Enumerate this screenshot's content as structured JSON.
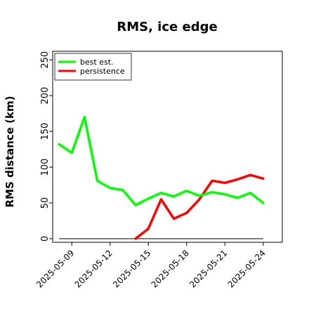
{
  "chart_data": {
    "type": "line",
    "title": "RMS, ice edge",
    "xlabel": "",
    "ylabel": "RMS distance (km)",
    "x_dates": [
      "2025-05-08",
      "2025-05-09",
      "2025-05-10",
      "2025-05-11",
      "2025-05-12",
      "2025-05-13",
      "2025-05-14",
      "2025-05-15",
      "2025-05-16",
      "2025-05-17",
      "2025-05-18",
      "2025-05-19",
      "2025-05-20",
      "2025-05-21",
      "2025-05-22",
      "2025-05-23",
      "2025-05-24"
    ],
    "xticks": [
      "2025-05-09",
      "2025-05-12",
      "2025-05-15",
      "2025-05-18",
      "2025-05-21",
      "2025-05-24"
    ],
    "xlim": [
      "2025-05-07T12:00",
      "2025-05-25T12:00"
    ],
    "ylim": [
      -5,
      262
    ],
    "yticks": [
      0,
      50,
      100,
      150,
      200,
      250
    ],
    "grid": false,
    "legend": "top-left",
    "series": [
      {
        "name": "best est.",
        "color": "#00ff00",
        "x": [
          "2025-05-08",
          "2025-05-09",
          "2025-05-10",
          "2025-05-11",
          "2025-05-12",
          "2025-05-13",
          "2025-05-14",
          "2025-05-15",
          "2025-05-16",
          "2025-05-17",
          "2025-05-18",
          "2025-05-19",
          "2025-05-20",
          "2025-05-21",
          "2025-05-22",
          "2025-05-23",
          "2025-05-24"
        ],
        "values": [
          132,
          120,
          170,
          81,
          71,
          68,
          47,
          56,
          64,
          59,
          67,
          60,
          65,
          62,
          57,
          64,
          50
        ]
      },
      {
        "name": "persistence",
        "color": "#ff0000",
        "x": [
          "2025-05-14",
          "2025-05-15",
          "2025-05-16",
          "2025-05-17",
          "2025-05-18",
          "2025-05-19",
          "2025-05-20",
          "2025-05-21",
          "2025-05-22",
          "2025-05-23",
          "2025-05-24"
        ],
        "values": [
          0,
          14,
          55,
          28,
          36,
          55,
          81,
          78,
          83,
          89,
          84
        ]
      }
    ],
    "baseline": {
      "x": [
        "2025-05-08",
        "2025-05-24"
      ],
      "value": 0,
      "color": "#555555"
    }
  }
}
